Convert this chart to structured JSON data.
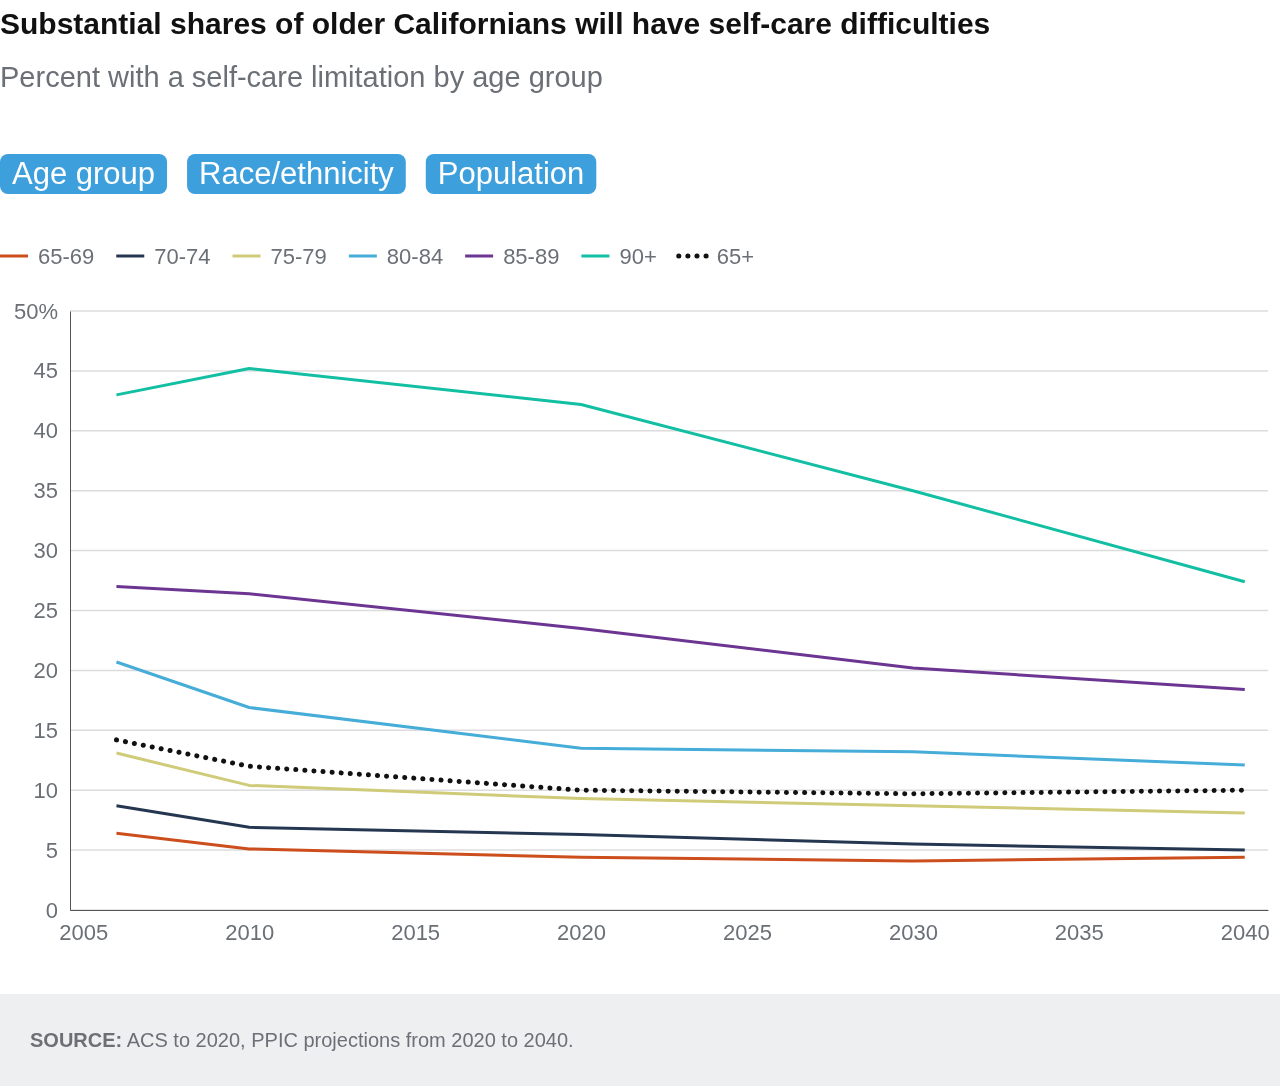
{
  "chart_data": {
    "type": "line",
    "title": "Substantial shares of older Californians will have self-care difficulties",
    "subtitle": "Percent with a self-care limitation by age group",
    "annotations": [
      "Age group",
      "Race/ethnicity",
      "Population",
      "SOURCE: ACS to 2020, PPIC projections from 2020 to 2040."
    ],
    "x": [
      2006,
      2010,
      2020,
      2030,
      2040
    ],
    "series": [
      {
        "name": "65-69",
        "color": "#cc4e1c",
        "values": [
          6.4,
          5.1,
          4.4,
          4.1,
          4.4
        ]
      },
      {
        "name": "70-74",
        "color": "#253750",
        "values": [
          8.7,
          6.9,
          6.3,
          5.5,
          5.0
        ]
      },
      {
        "name": "75-79",
        "color": "#cfcb78",
        "values": [
          13.1,
          10.4,
          9.3,
          8.7,
          8.1
        ]
      },
      {
        "name": "80-84",
        "color": "#46acd8",
        "values": [
          20.7,
          16.9,
          13.5,
          13.2,
          12.1
        ]
      },
      {
        "name": "85-89",
        "color": "#6b3591",
        "values": [
          27.0,
          26.4,
          23.5,
          20.2,
          18.4
        ]
      },
      {
        "name": "90+",
        "color": "#12bfa3",
        "values": [
          43.0,
          45.2,
          42.2,
          35.0,
          27.4
        ]
      },
      {
        "name": "65+",
        "color": "#111111",
        "line_style": "dotted",
        "values": [
          14.2,
          12.0,
          10.0,
          9.7,
          10.0
        ]
      }
    ],
    "xlim": [
      2004.6,
      2040.7
    ],
    "xticks": [
      2005,
      2010,
      2015,
      2020,
      2025,
      2030,
      2035,
      2040
    ],
    "ylim": [
      0,
      50
    ],
    "yticks": [
      0,
      5,
      10,
      15,
      20,
      25,
      30,
      35,
      40,
      45,
      {
        "value": 50,
        "label": "50%"
      }
    ],
    "grid": "y",
    "legend": "top left",
    "marker": "none",
    "line_style": "solid"
  }
}
